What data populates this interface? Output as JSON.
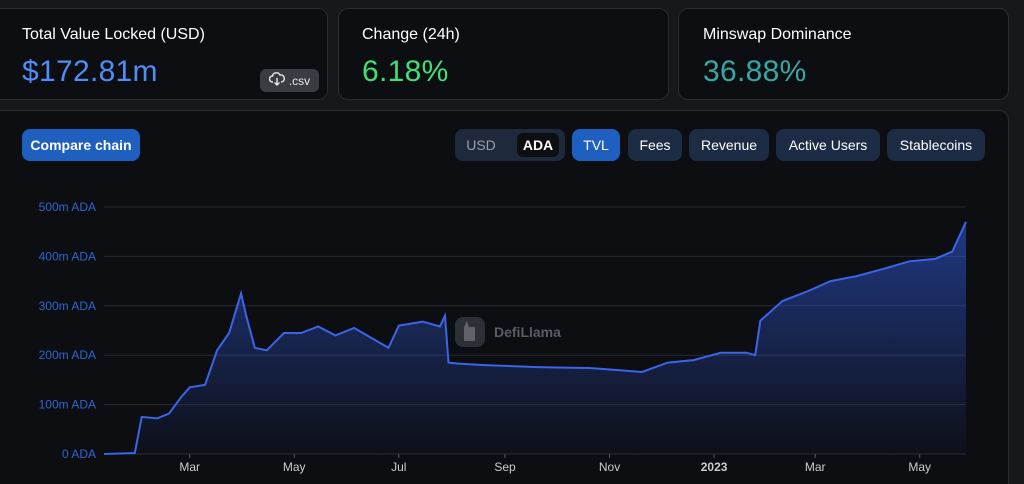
{
  "stats": {
    "tvl": {
      "title": "Total Value Locked (USD)",
      "value": "$172.81m",
      "csv_label": ".csv",
      "color": "#4f8ef7"
    },
    "change": {
      "title": "Change (24h)",
      "value": "6.18%",
      "color": "#3ee07a"
    },
    "dominance": {
      "title": "Minswap Dominance",
      "value": "36.88%",
      "color": "#37a6a6"
    }
  },
  "controls": {
    "compare_label": "Compare chain",
    "currency": {
      "options": [
        "USD",
        "ADA"
      ],
      "selected": "ADA"
    },
    "tabs": [
      "TVL",
      "Fees",
      "Revenue",
      "Active Users",
      "Stablecoins"
    ],
    "active_tab": "TVL"
  },
  "watermark": "DefiLlama",
  "chart_data": {
    "type": "area",
    "series": [
      {
        "name": "TVL",
        "color": "#2f5be0"
      }
    ],
    "yticks": [
      "500m ADA",
      "400m ADA",
      "300m ADA",
      "200m ADA",
      "100m ADA",
      "0 ADA"
    ],
    "ylim": [
      0,
      500
    ],
    "xticks": [
      "Mar",
      "May",
      "Jul",
      "Sep",
      "Nov",
      "2023",
      "Mar",
      "May"
    ],
    "x": [
      "2022-01-10",
      "2022-01-28",
      "2022-02-01",
      "2022-02-10",
      "2022-02-17",
      "2022-02-24",
      "2022-03-01",
      "2022-03-10",
      "2022-03-17",
      "2022-03-24",
      "2022-03-31",
      "2022-04-03",
      "2022-04-08",
      "2022-04-15",
      "2022-04-25",
      "2022-05-05",
      "2022-05-15",
      "2022-05-25",
      "2022-06-05",
      "2022-06-15",
      "2022-06-25",
      "2022-07-01",
      "2022-07-15",
      "2022-07-25",
      "2022-07-28",
      "2022-07-30",
      "2022-08-05",
      "2022-08-20",
      "2022-09-05",
      "2022-09-20",
      "2022-10-05",
      "2022-10-20",
      "2022-11-05",
      "2022-11-20",
      "2022-12-05",
      "2022-12-20",
      "2023-01-05",
      "2023-01-20",
      "2023-01-25",
      "2023-01-28",
      "2023-02-10",
      "2023-02-25",
      "2023-03-10",
      "2023-03-25",
      "2023-04-10",
      "2023-04-25",
      "2023-05-10",
      "2023-05-20",
      "2023-05-28"
    ],
    "y": [
      0,
      2,
      75,
      72,
      82,
      115,
      135,
      140,
      210,
      245,
      325,
      280,
      215,
      210,
      245,
      245,
      258,
      240,
      255,
      235,
      215,
      260,
      268,
      258,
      280,
      185,
      183,
      180,
      178,
      176,
      175,
      174,
      170,
      166,
      185,
      190,
      205,
      205,
      200,
      270,
      310,
      330,
      350,
      360,
      375,
      390,
      395,
      410,
      470
    ]
  }
}
